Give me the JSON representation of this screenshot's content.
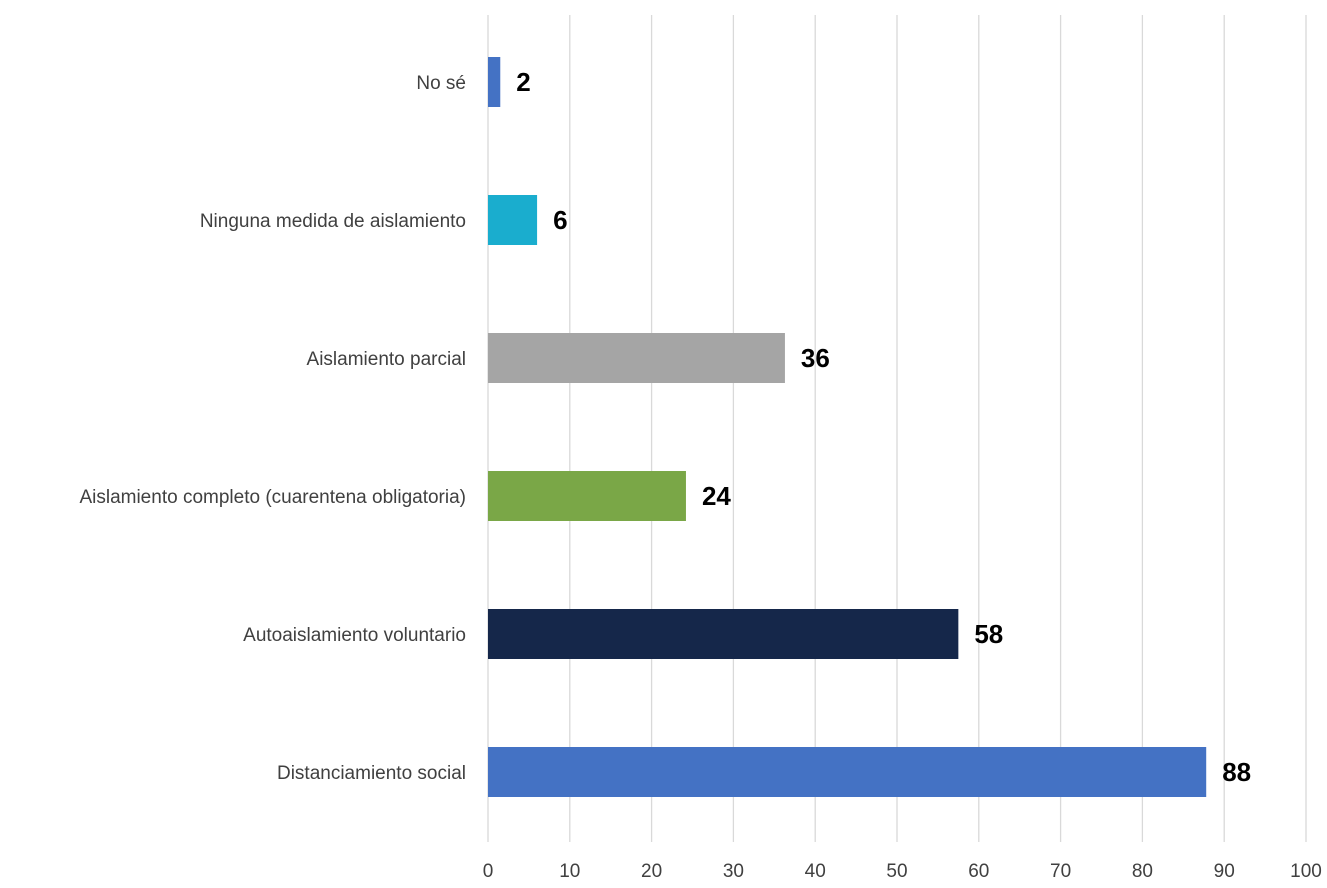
{
  "chart_data": {
    "type": "bar",
    "orientation": "horizontal",
    "title": "",
    "xlabel": "",
    "ylabel": "",
    "xlim": [
      0,
      100
    ],
    "grid": true,
    "legend": "none",
    "ticks": [
      0,
      10,
      20,
      30,
      40,
      50,
      60,
      70,
      80,
      90,
      100
    ],
    "categories": [
      "No sé",
      "Ninguna medida de aislamiento",
      "Aislamiento parcial",
      "Aislamiento completo (cuarentena obligatoria)",
      "Autoaislamiento voluntario",
      "Distanciamiento social"
    ],
    "values": [
      1.5,
      6,
      36.3,
      24.2,
      57.5,
      87.8
    ],
    "value_labels": [
      "2",
      "6",
      "36",
      "24",
      "58",
      "88"
    ],
    "colors": [
      "#4472C4",
      "#1AADCE",
      "#A5A5A5",
      "#7AA747",
      "#15274A",
      "#4472C4"
    ],
    "grid_color": "#d9d9d9"
  }
}
